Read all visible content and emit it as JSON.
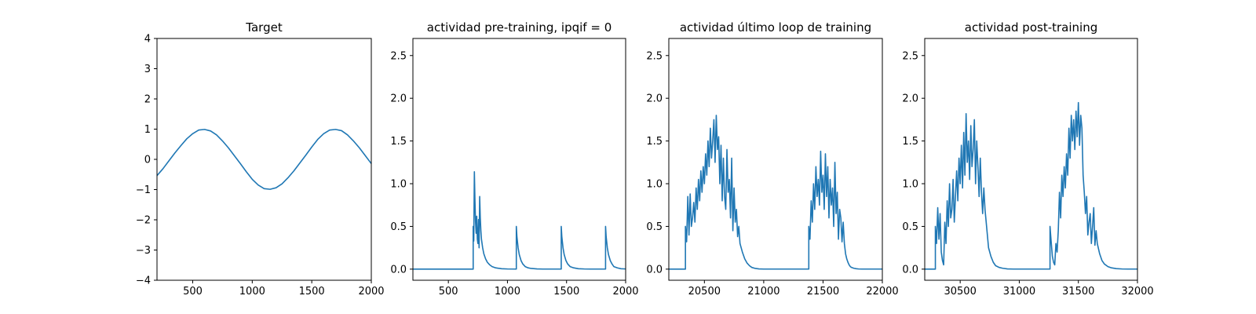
{
  "chart_data": [
    {
      "type": "line",
      "title": "Target",
      "xlabel": "",
      "ylabel": "",
      "xlim": [
        200,
        2000
      ],
      "ylim": [
        -4,
        4
      ],
      "xticks": [
        500,
        1000,
        1500,
        2000
      ],
      "xtick_labels": [
        "500",
        "1000",
        "1500",
        "2000"
      ],
      "yticks": [
        -4,
        -3,
        -2,
        -1,
        0,
        1,
        2,
        3,
        4
      ],
      "ytick_labels": [
        "−4",
        "−3",
        "−2",
        "−1",
        "0",
        "1",
        "2",
        "3",
        "4"
      ],
      "grid": false,
      "series": [
        {
          "color": "#1f77b4",
          "x": [
            200,
            250,
            300,
            350,
            400,
            450,
            500,
            550,
            600,
            650,
            700,
            750,
            800,
            850,
            900,
            950,
            1000,
            1050,
            1100,
            1150,
            1200,
            1250,
            1300,
            1350,
            1400,
            1450,
            1500,
            1550,
            1600,
            1650,
            1700,
            1750,
            1800,
            1850,
            1900,
            1950,
            2000
          ],
          "y": [
            -0.54,
            -0.31,
            -0.05,
            0.21,
            0.45,
            0.68,
            0.85,
            0.97,
            0.99,
            0.94,
            0.81,
            0.61,
            0.38,
            0.12,
            -0.14,
            -0.41,
            -0.66,
            -0.85,
            -0.97,
            -0.99,
            -0.94,
            -0.81,
            -0.61,
            -0.38,
            -0.12,
            0.14,
            0.41,
            0.66,
            0.85,
            0.97,
            0.99,
            0.95,
            0.81,
            0.61,
            0.38,
            0.12,
            -0.14
          ]
        }
      ]
    },
    {
      "type": "line",
      "title": "actividad pre-training, ipqif = 0",
      "xlabel": "",
      "ylabel": "",
      "xlim": [
        200,
        2000
      ],
      "ylim": [
        -0.13,
        2.7
      ],
      "xticks": [
        500,
        1000,
        1500,
        2000
      ],
      "xtick_labels": [
        "500",
        "1000",
        "1500",
        "2000"
      ],
      "yticks": [
        0,
        0.5,
        1.0,
        1.5,
        2.0,
        2.5
      ],
      "ytick_labels": [
        "0.0",
        "0.5",
        "1.0",
        "1.5",
        "2.0",
        "2.5"
      ],
      "grid": false,
      "series": [
        {
          "color": "#1f77b4",
          "x": [
            200,
            710,
            710,
            715,
            720,
            725,
            730,
            735,
            740,
            745,
            750,
            755,
            760,
            765,
            770,
            775,
            780,
            790,
            800,
            815,
            830,
            850,
            870,
            900,
            950,
            1000,
            1075,
            1075,
            1080,
            1090,
            1100,
            1115,
            1130,
            1150,
            1175,
            1200,
            1250,
            1300,
            1350,
            1400,
            1455,
            1455,
            1460,
            1470,
            1480,
            1495,
            1510,
            1530,
            1560,
            1600,
            1650,
            1700,
            1750,
            1830,
            1830,
            1835,
            1845,
            1855,
            1870,
            1885,
            1900,
            1930,
            1960,
            2000
          ],
          "y": [
            0,
            0,
            0.5,
            0.33,
            1.14,
            0.8,
            0.55,
            0.42,
            0.62,
            0.35,
            0.3,
            0.58,
            0.25,
            0.85,
            0.6,
            0.45,
            0.35,
            0.25,
            0.18,
            0.12,
            0.08,
            0.05,
            0.03,
            0.015,
            0.005,
            0.002,
            0.001,
            0.5,
            0.38,
            0.25,
            0.17,
            0.1,
            0.06,
            0.03,
            0.015,
            0.008,
            0.003,
            0.001,
            0.001,
            0.001,
            0.001,
            0.5,
            0.38,
            0.25,
            0.17,
            0.1,
            0.06,
            0.03,
            0.015,
            0.005,
            0.002,
            0.001,
            0.001,
            0.001,
            0.5,
            0.38,
            0.25,
            0.17,
            0.1,
            0.06,
            0.03,
            0.015,
            0.005,
            0.002
          ]
        }
      ]
    },
    {
      "type": "line",
      "title": "actividad último loop de training",
      "xlabel": "",
      "ylabel": "",
      "xlim": [
        20200,
        22000
      ],
      "ylim": [
        -0.13,
        2.7
      ],
      "xticks": [
        20500,
        21000,
        21500,
        22000
      ],
      "xtick_labels": [
        "20500",
        "21000",
        "21500",
        "22000"
      ],
      "yticks": [
        0,
        0.5,
        1.0,
        1.5,
        2.0,
        2.5
      ],
      "ytick_labels": [
        "0.0",
        "0.5",
        "1.0",
        "1.5",
        "2.0",
        "2.5"
      ],
      "grid": false,
      "series": [
        {
          "color": "#1f77b4",
          "x": [
            20200,
            20340,
            20340,
            20350,
            20360,
            20370,
            20380,
            20390,
            20400,
            20410,
            20420,
            20430,
            20440,
            20450,
            20460,
            20470,
            20480,
            20490,
            20500,
            20510,
            20520,
            20530,
            20540,
            20550,
            20560,
            20570,
            20580,
            20590,
            20600,
            20610,
            20620,
            20630,
            20640,
            20650,
            20660,
            20670,
            20680,
            20690,
            20700,
            20710,
            20720,
            20730,
            20740,
            20750,
            20760,
            20770,
            20780,
            20790,
            20800,
            20820,
            20840,
            20860,
            20880,
            20900,
            20930,
            20960,
            21000,
            21050,
            21100,
            21150,
            21200,
            21250,
            21300,
            21350,
            21380,
            21380,
            21390,
            21400,
            21410,
            21420,
            21430,
            21440,
            21450,
            21460,
            21470,
            21480,
            21490,
            21500,
            21510,
            21520,
            21530,
            21540,
            21550,
            21560,
            21570,
            21580,
            21590,
            21600,
            21610,
            21620,
            21630,
            21640,
            21650,
            21660,
            21670,
            21680,
            21690,
            21700,
            21710,
            21720,
            21730,
            21740,
            21760,
            21780,
            21800,
            21830,
            21860,
            21900,
            21950,
            22000
          ],
          "y": [
            0,
            0,
            0.5,
            0.32,
            0.85,
            0.4,
            0.88,
            0.5,
            0.6,
            0.78,
            0.55,
            0.95,
            0.7,
            1.05,
            0.8,
            1.15,
            0.9,
            1.2,
            1.0,
            1.35,
            1.1,
            1.5,
            1.2,
            1.65,
            1.3,
            1.5,
            1.75,
            1.25,
            1.8,
            1.4,
            1.55,
            1.0,
            1.45,
            0.8,
            1.3,
            0.85,
            0.7,
            1.4,
            0.9,
            1.05,
            0.6,
            1.3,
            0.45,
            0.95,
            0.55,
            0.7,
            0.38,
            0.5,
            0.3,
            0.2,
            0.12,
            0.07,
            0.04,
            0.02,
            0.008,
            0.003,
            0.001,
            0.001,
            0.001,
            0.001,
            0.001,
            0.001,
            0.001,
            0.001,
            0.001,
            0.5,
            0.35,
            0.8,
            0.55,
            1.0,
            0.7,
            1.2,
            0.85,
            1.05,
            0.75,
            1.38,
            0.9,
            1.1,
            0.7,
            1.35,
            0.85,
            1.2,
            0.6,
            1.05,
            0.75,
            0.95,
            0.5,
            1.25,
            0.65,
            0.9,
            0.35,
            0.7,
            0.6,
            0.32,
            0.55,
            0.3,
            0.18,
            0.12,
            0.08,
            0.05,
            0.03,
            0.02,
            0.01,
            0.005,
            0.002,
            0.001,
            0.001,
            0.001,
            0.001,
            0.001
          ]
        }
      ]
    },
    {
      "type": "line",
      "title": "actividad post-training",
      "xlabel": "",
      "ylabel": "",
      "xlim": [
        30200,
        32000
      ],
      "ylim": [
        -0.13,
        2.7
      ],
      "xticks": [
        30500,
        31000,
        31500,
        32000
      ],
      "xtick_labels": [
        "30500",
        "31000",
        "31500",
        "32000"
      ],
      "yticks": [
        0,
        0.5,
        1.0,
        1.5,
        2.0,
        2.5
      ],
      "ytick_labels": [
        "0.0",
        "0.5",
        "1.0",
        "1.5",
        "2.0",
        "2.5"
      ],
      "grid": false,
      "series": [
        {
          "color": "#1f77b4",
          "x": [
            30200,
            30290,
            30290,
            30300,
            30310,
            30320,
            30330,
            30340,
            30350,
            30360,
            30370,
            30380,
            30390,
            30400,
            30410,
            30420,
            30430,
            30440,
            30450,
            30460,
            30470,
            30480,
            30490,
            30500,
            30510,
            30520,
            30530,
            30540,
            30550,
            30560,
            30570,
            30580,
            30590,
            30600,
            30610,
            30620,
            30630,
            30640,
            30650,
            30660,
            30670,
            30680,
            30690,
            30700,
            30710,
            30720,
            30730,
            30740,
            30760,
            30780,
            30800,
            30830,
            30860,
            30900,
            30950,
            31000,
            31050,
            31100,
            31150,
            31200,
            31250,
            31260,
            31260,
            31270,
            31280,
            31290,
            31300,
            31310,
            31320,
            31330,
            31340,
            31350,
            31360,
            31370,
            31380,
            31390,
            31400,
            31410,
            31420,
            31430,
            31440,
            31450,
            31460,
            31470,
            31480,
            31490,
            31500,
            31510,
            31520,
            31530,
            31540,
            31550,
            31560,
            31570,
            31580,
            31590,
            31600,
            31610,
            31620,
            31630,
            31640,
            31650,
            31660,
            31680,
            31700,
            31720,
            31750,
            31780,
            31820,
            31870,
            31920,
            32000
          ],
          "y": [
            0,
            0,
            0.5,
            0.3,
            0.72,
            0.35,
            0.65,
            0.2,
            0.1,
            0.05,
            0.55,
            0.3,
            0.8,
            0.5,
            1.0,
            0.6,
            0.7,
            1.05,
            0.55,
            0.85,
            1.15,
            0.8,
            1.3,
            1.0,
            1.45,
            0.95,
            1.6,
            1.1,
            1.82,
            1.25,
            1.5,
            1.05,
            1.68,
            1.2,
            1.4,
            1.75,
            1.0,
            1.5,
            1.2,
            0.85,
            1.3,
            0.9,
            0.65,
            0.95,
            0.7,
            0.55,
            0.4,
            0.25,
            0.15,
            0.08,
            0.04,
            0.02,
            0.01,
            0.003,
            0.001,
            0.001,
            0.001,
            0.001,
            0.001,
            0.001,
            0.001,
            0.001,
            0.5,
            0.32,
            0.15,
            0.08,
            0.05,
            0.3,
            0.2,
            0.45,
            0.9,
            0.6,
            1.1,
            0.85,
            1.2,
            0.95,
            1.35,
            1.1,
            1.65,
            1.3,
            1.8,
            1.5,
            1.75,
            1.4,
            1.85,
            1.55,
            1.95,
            1.45,
            1.8,
            1.65,
            1.1,
            0.9,
            0.65,
            0.85,
            0.4,
            0.55,
            0.65,
            0.3,
            0.5,
            0.72,
            0.28,
            0.45,
            0.3,
            0.18,
            0.1,
            0.06,
            0.03,
            0.015,
            0.006,
            0.002,
            0.001,
            0.001
          ]
        }
      ]
    }
  ]
}
